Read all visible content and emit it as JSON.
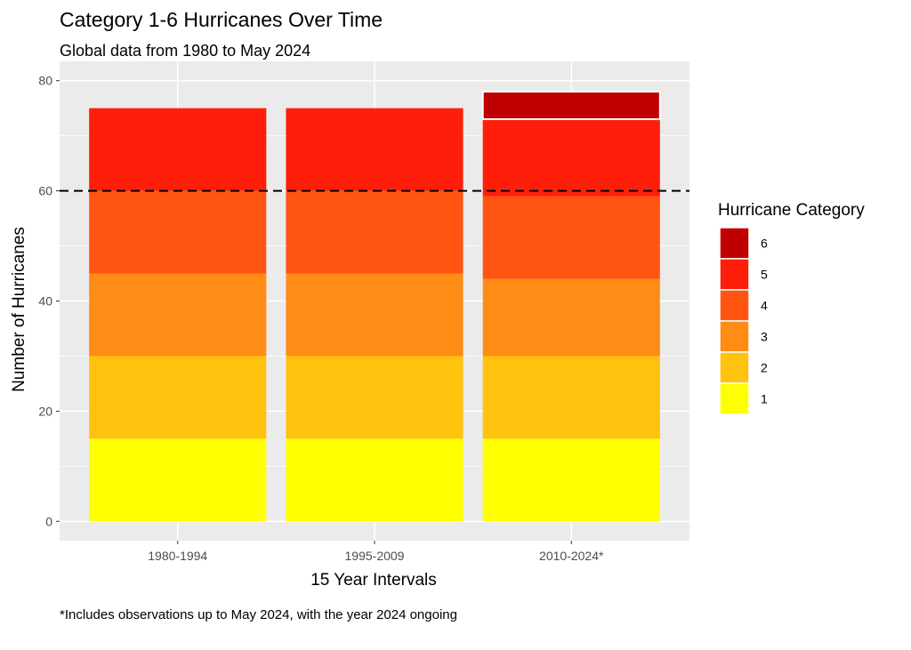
{
  "chart_data": {
    "type": "bar",
    "stacked": true,
    "title": "Category 1-6 Hurricanes Over Time",
    "subtitle": "Global data from 1980 to May 2024",
    "xlabel": "15 Year Intervals",
    "ylabel": "Number of Hurricanes",
    "caption": "*Includes observations up to May 2024, with the year 2024 ongoing",
    "categories": [
      "1980-1994",
      "1995-2009",
      "2010-2024*"
    ],
    "ylim": [
      -3.5,
      83.5
    ],
    "yticks": [
      0,
      20,
      40,
      60,
      80
    ],
    "reference_line": {
      "y": 60,
      "style": "dashed",
      "color": "#000000"
    },
    "grid": true,
    "legend": {
      "title": "Hurricane Category",
      "position": "right"
    },
    "series": [
      {
        "name": "1",
        "color": "#FFFF00",
        "values": [
          15,
          15,
          15
        ]
      },
      {
        "name": "2",
        "color": "#FFC20E",
        "values": [
          15,
          15,
          15
        ]
      },
      {
        "name": "3",
        "color": "#FF8C15",
        "values": [
          15,
          15,
          14
        ]
      },
      {
        "name": "4",
        "color": "#FF5412",
        "values": [
          15,
          15,
          15
        ]
      },
      {
        "name": "5",
        "color": "#FF1E0A",
        "values": [
          15,
          15,
          14
        ]
      },
      {
        "name": "6",
        "color": "#C00000",
        "values": [
          0,
          0,
          5
        ]
      }
    ]
  }
}
